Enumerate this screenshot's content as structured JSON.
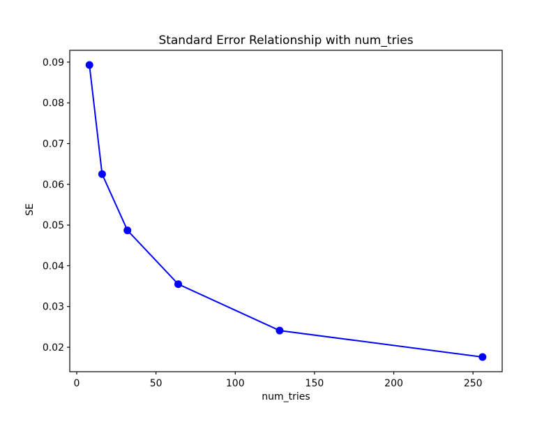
{
  "figure": {
    "background": "#ffffff",
    "text_color": "#000000",
    "spine_color": "#000000"
  },
  "chart_data": {
    "type": "line",
    "title": "Standard Error Relationship with num_tries",
    "xlabel": "num_tries",
    "ylabel": "SE",
    "x": [
      8,
      16,
      32,
      64,
      128,
      256
    ],
    "y": [
      0.0893,
      0.0625,
      0.0487,
      0.0355,
      0.0241,
      0.0176
    ],
    "x_ticks": [
      0,
      50,
      100,
      150,
      200,
      250
    ],
    "y_ticks": [
      0.02,
      0.03,
      0.04,
      0.05,
      0.06,
      0.07,
      0.08,
      0.09
    ],
    "xlim": [
      -4.4,
      268.4
    ],
    "ylim": [
      0.014,
      0.0929
    ],
    "line_color": "#0000ff",
    "marker": "circle",
    "grid": false,
    "legend": "none"
  }
}
